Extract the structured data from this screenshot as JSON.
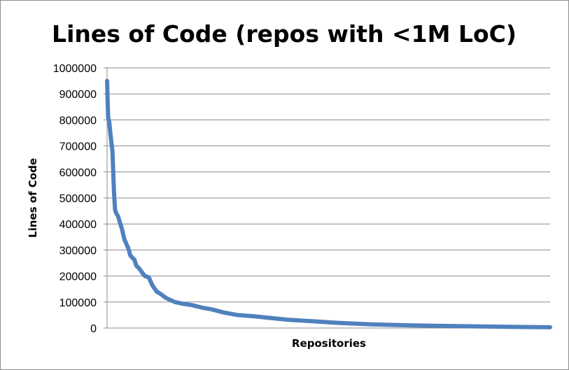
{
  "chart_data": {
    "type": "line",
    "title": "Lines of Code (repos with <1M LoC)",
    "xlabel": "Repositories",
    "ylabel": "Lines of Code",
    "ylim": [
      0,
      1000000
    ],
    "yticks": [
      "0",
      "100000",
      "200000",
      "300000",
      "400000",
      "500000",
      "600000",
      "700000",
      "800000",
      "900000",
      "1000000"
    ],
    "x_tick_labels": "none",
    "grid": "horizontal",
    "legend": "none",
    "line_color": "#4F81BD",
    "series": [
      {
        "x": [
          0,
          0.2,
          0.6,
          1.3,
          2.0,
          3.1,
          4.0,
          4.6,
          5.3,
          6.3,
          7.2,
          8.6,
          10.0,
          11.0,
          12.3,
          13.3,
          14.3,
          15.8,
          16.8,
          18.6,
          20.0,
          21.7,
          24.0,
          26.0,
          27.0,
          28.6,
          31.0,
          34.0,
          39.0,
          44.0,
          49.0,
          55.0,
          60.0,
          67.0,
          75.0,
          85.0,
          92.0,
          104.0,
          118.0,
          133.0,
          152.0,
          176.0,
          205.0,
          238.0,
          255.0
        ],
        "y": [
          950000,
          900000,
          810000,
          790000,
          740000,
          680000,
          520000,
          455000,
          440000,
          430000,
          410000,
          380000,
          340000,
          325000,
          305000,
          280000,
          272000,
          262000,
          240000,
          228000,
          215000,
          200000,
          195000,
          165000,
          155000,
          140000,
          130000,
          115000,
          100000,
          93000,
          88000,
          78000,
          72000,
          60000,
          50000,
          45000,
          40000,
          32000,
          26000,
          20000,
          14000,
          10000,
          7000,
          4000,
          3000
        ]
      }
    ]
  }
}
